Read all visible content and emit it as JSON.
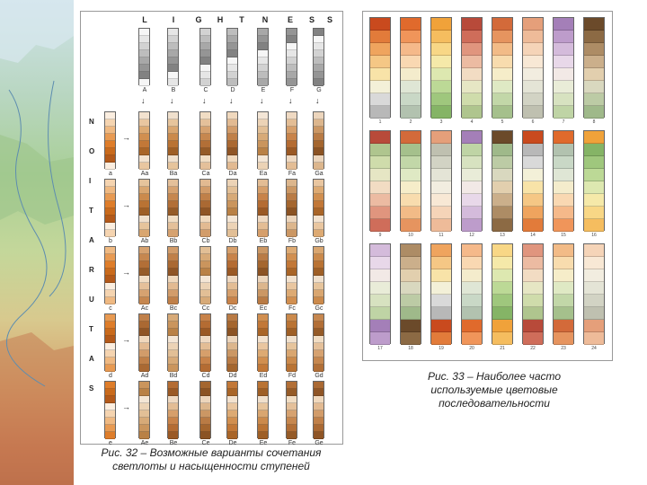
{
  "map": {
    "icon": "map-background"
  },
  "figure32": {
    "column_headers": [
      "L",
      "I",
      "G",
      "H",
      "T",
      "N",
      "E",
      "S",
      "S"
    ],
    "intermediate_labels": [
      "A",
      "B",
      "C",
      "D",
      "E",
      "F",
      "G"
    ],
    "vertical_labels": [
      "N",
      "O",
      "I",
      "T",
      "A",
      "R",
      "U",
      "T",
      "A",
      "S"
    ],
    "row_labels": [
      {
        "left": "a",
        "cols": [
          "Aa",
          "Ba",
          "Ca",
          "Da",
          "Ea",
          "Fa",
          "Ga"
        ]
      },
      {
        "left": "b",
        "cols": [
          "Ab",
          "Bb",
          "Cb",
          "Db",
          "Eb",
          "Fb",
          "Gb"
        ]
      },
      {
        "left": "c",
        "cols": [
          "Ac",
          "Bc",
          "Cc",
          "Dc",
          "Ec",
          "Fc",
          "Gc"
        ]
      },
      {
        "left": "d",
        "cols": [
          "Ad",
          "Bd",
          "Cd",
          "Dd",
          "Ed",
          "Fd",
          "Gd"
        ]
      },
      {
        "left": "e",
        "cols": [
          "Ae",
          "Be",
          "Ce",
          "De",
          "Ee",
          "Fe",
          "Ge"
        ]
      }
    ],
    "caption_line1": "Рис. 32 – Возможные варианты сочетания",
    "caption_line2": "светлоты и насыщенности ступеней"
  },
  "figure33": {
    "numbers": [
      "1",
      "2",
      "3",
      "4",
      "5",
      "6",
      "7",
      "8",
      "9",
      "10",
      "11",
      "12",
      "13",
      "14",
      "15",
      "16",
      "17",
      "18",
      "19",
      "20",
      "21",
      "22",
      "23",
      "24"
    ],
    "caption_line1": "Рис. 33 – Наиболее часто",
    "caption_line2": "используемые цветовые",
    "caption_line3": "последовательности"
  }
}
